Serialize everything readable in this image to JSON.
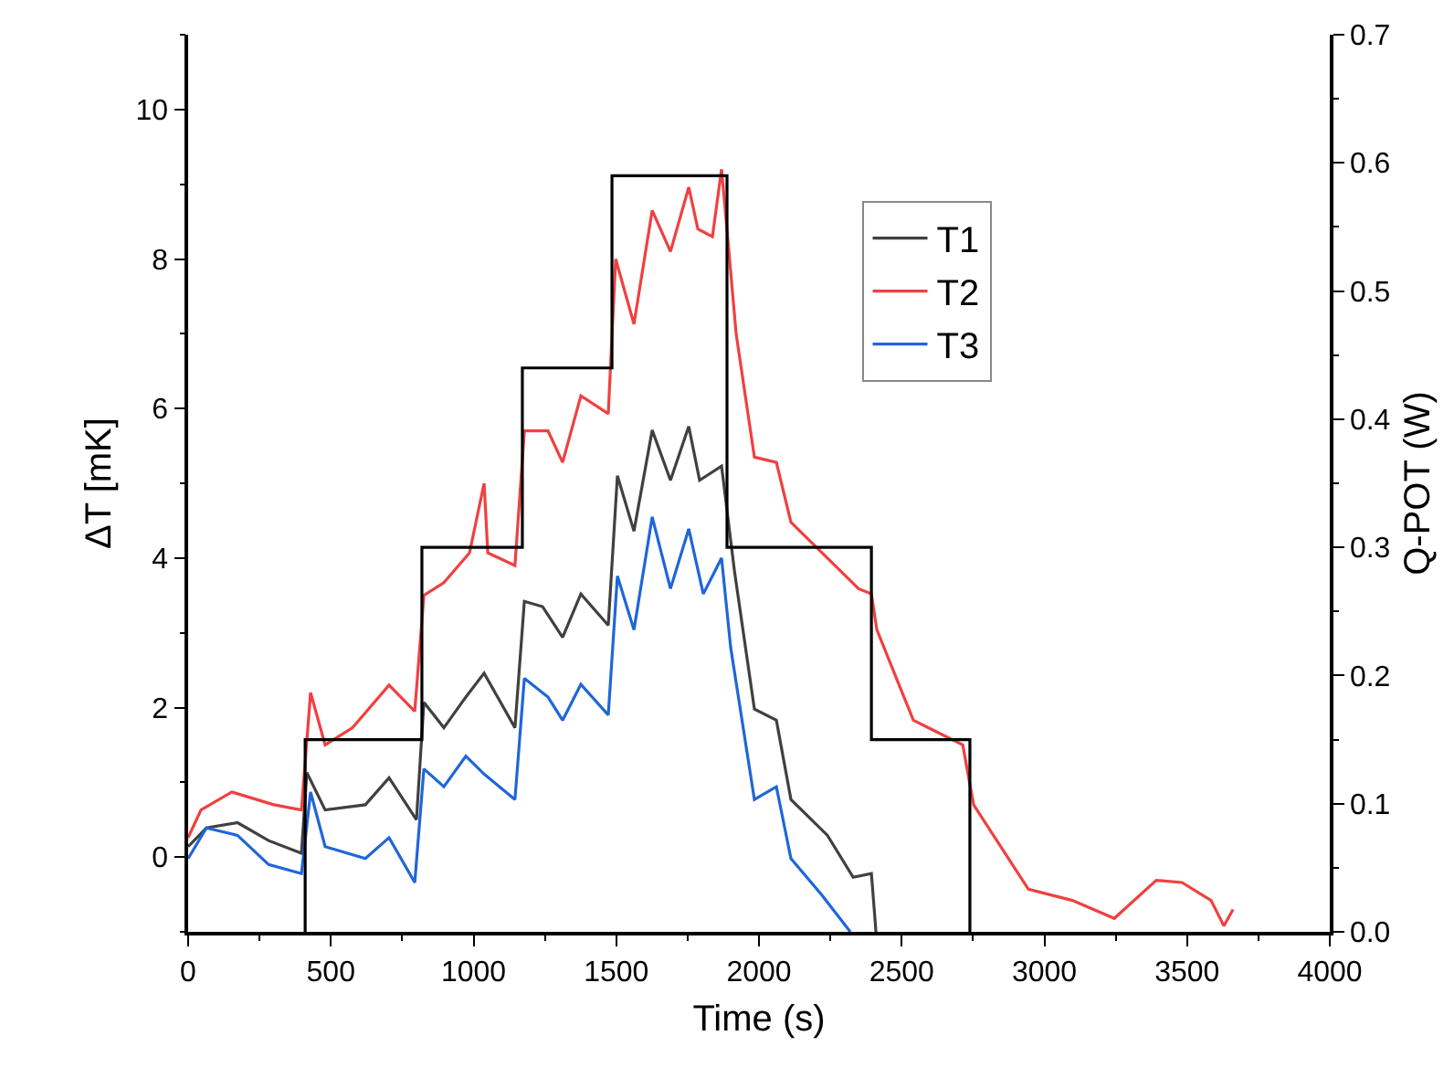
{
  "chart_data": {
    "type": "line",
    "xlabel": "Time (s)",
    "ylabel": "ΔT [mK]",
    "y2label": "Q-POT (W)",
    "xlim": [
      0,
      4000
    ],
    "xticks": [
      0,
      500,
      1000,
      1500,
      2000,
      2500,
      3000,
      3500,
      4000
    ],
    "ylim": [
      -1,
      11
    ],
    "yticks": [
      0,
      2,
      4,
      6,
      8,
      10
    ],
    "y2lim": [
      0,
      0.7
    ],
    "y2ticks": [
      {
        "value": 0,
        "label": "0.0"
      },
      0.1,
      0.2,
      0.3,
      0.4,
      0.5,
      0.6,
      0.7
    ],
    "legend": "top right",
    "marker": "none",
    "line_style": "solid",
    "series": [
      {
        "name": "T1",
        "color": "#404040",
        "x": [
          0,
          64,
          173,
          282,
          397,
          416,
          480,
          621,
          704,
          800,
          826,
          896,
          973,
          1037,
          1145,
          1178,
          1242,
          1312,
          1376,
          1472,
          1504,
          1562,
          1626,
          1690,
          1754,
          1792,
          1869,
          1914,
          1984,
          2061,
          2112,
          2240,
          2330,
          2394,
          2410
        ],
        "values": [
          0.14,
          0.39,
          0.46,
          0.22,
          0.05,
          1.13,
          0.63,
          0.7,
          1.06,
          0.5,
          2.07,
          1.73,
          2.14,
          2.46,
          1.73,
          3.42,
          3.35,
          2.94,
          3.52,
          3.1,
          5.1,
          4.36,
          5.71,
          5.04,
          5.76,
          5.04,
          5.23,
          3.83,
          1.98,
          1.83,
          0.77,
          0.29,
          -0.27,
          -0.22,
          -1.0
        ]
      },
      {
        "name": "T2",
        "color": "#f04040",
        "x": [
          0,
          45,
          153,
          300,
          397,
          429,
          480,
          576,
          704,
          794,
          826,
          896,
          986,
          1037,
          1050,
          1145,
          1178,
          1261,
          1312,
          1376,
          1472,
          1498,
          1562,
          1626,
          1690,
          1754,
          1786,
          1837,
          1869,
          1882,
          1920,
          1984,
          2061,
          2112,
          2221,
          2349,
          2394,
          2413,
          2541,
          2714,
          2752,
          2944,
          3098,
          3245,
          3392,
          3482,
          3584,
          3629,
          3661
        ],
        "values": [
          0.26,
          0.63,
          0.87,
          0.7,
          0.63,
          2.2,
          1.5,
          1.73,
          2.3,
          1.95,
          3.5,
          3.67,
          4.07,
          5.0,
          4.07,
          3.9,
          5.7,
          5.7,
          5.28,
          6.17,
          5.93,
          8.0,
          7.13,
          8.65,
          8.1,
          8.96,
          8.4,
          8.3,
          9.2,
          8.65,
          7.0,
          5.35,
          5.28,
          4.48,
          4.07,
          3.59,
          3.52,
          3.04,
          1.83,
          1.5,
          0.7,
          -0.43,
          -0.58,
          -0.82,
          -0.31,
          -0.34,
          -0.58,
          -0.92,
          -0.7
        ]
      },
      {
        "name": "T3",
        "color": "#1f66d9",
        "x": [
          0,
          64,
          173,
          282,
          397,
          429,
          480,
          621,
          704,
          794,
          826,
          896,
          973,
          1037,
          1145,
          1178,
          1261,
          1312,
          1376,
          1472,
          1504,
          1562,
          1626,
          1690,
          1754,
          1805,
          1869,
          1901,
          1984,
          2061,
          2112,
          2221,
          2320
        ],
        "values": [
          -0.02,
          0.39,
          0.29,
          -0.1,
          -0.22,
          0.87,
          0.14,
          -0.02,
          0.26,
          -0.34,
          1.18,
          0.94,
          1.35,
          1.11,
          0.77,
          2.39,
          2.14,
          1.83,
          2.31,
          1.9,
          3.76,
          3.04,
          4.55,
          3.59,
          4.39,
          3.52,
          4.0,
          2.8,
          0.77,
          0.94,
          -0.02,
          -0.51,
          -1.0
        ]
      },
      {
        "type": "step",
        "axis": "y2",
        "color": "#000000",
        "x": [
          410,
          410,
          819,
          1171,
          1485,
          1888,
          2394,
          2739
        ],
        "values": [
          0,
          0.15,
          0.3,
          0.44,
          0.59,
          0.3,
          0.15,
          0
        ]
      }
    ]
  }
}
